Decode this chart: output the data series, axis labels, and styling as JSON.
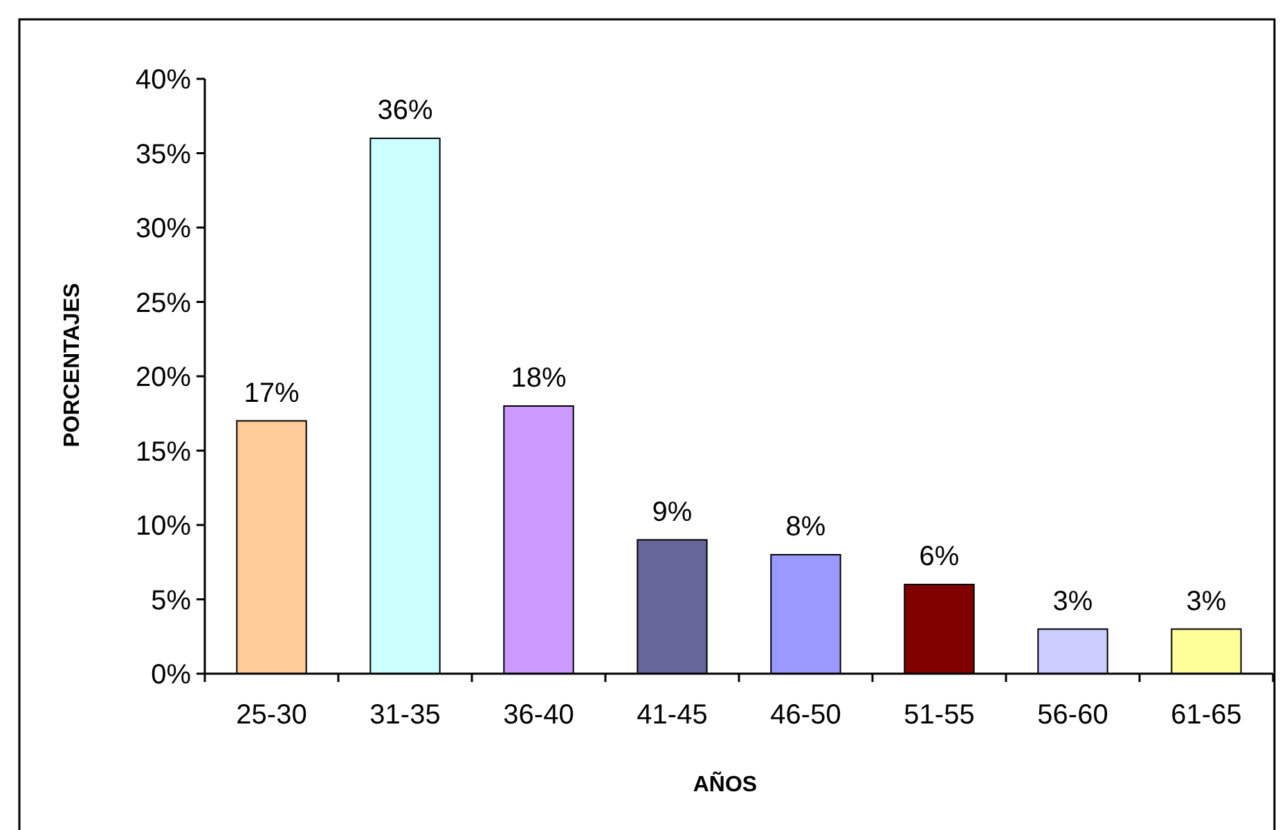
{
  "chart_data": {
    "type": "bar",
    "xlabel": "AÑOS",
    "ylabel": "PORCENTAJES",
    "categories": [
      "25-30",
      "31-35",
      "36-40",
      "41-45",
      "46-50",
      "51-55",
      "56-60",
      "61-65"
    ],
    "values": [
      17,
      36,
      18,
      9,
      8,
      6,
      3,
      3
    ],
    "colors": [
      "#ffcc99",
      "#ccffff",
      "#cc99ff",
      "#666699",
      "#9999ff",
      "#800000",
      "#ccccff",
      "#ffff99"
    ],
    "value_labels": [
      "17%",
      "36%",
      "18%",
      "9%",
      "8%",
      "6%",
      "3%",
      "3%"
    ],
    "ylim": [
      0,
      40
    ],
    "yticks": [
      {
        "value": 0,
        "label": "0%"
      },
      {
        "value": 5,
        "label": "5%"
      },
      {
        "value": 10,
        "label": "10%"
      },
      {
        "value": 15,
        "label": "15%"
      },
      {
        "value": 20,
        "label": "20%"
      },
      {
        "value": 25,
        "label": "25%"
      },
      {
        "value": 30,
        "label": "30%"
      },
      {
        "value": 35,
        "label": "35%"
      },
      {
        "value": 40,
        "label": "40%"
      }
    ],
    "grid": false
  }
}
